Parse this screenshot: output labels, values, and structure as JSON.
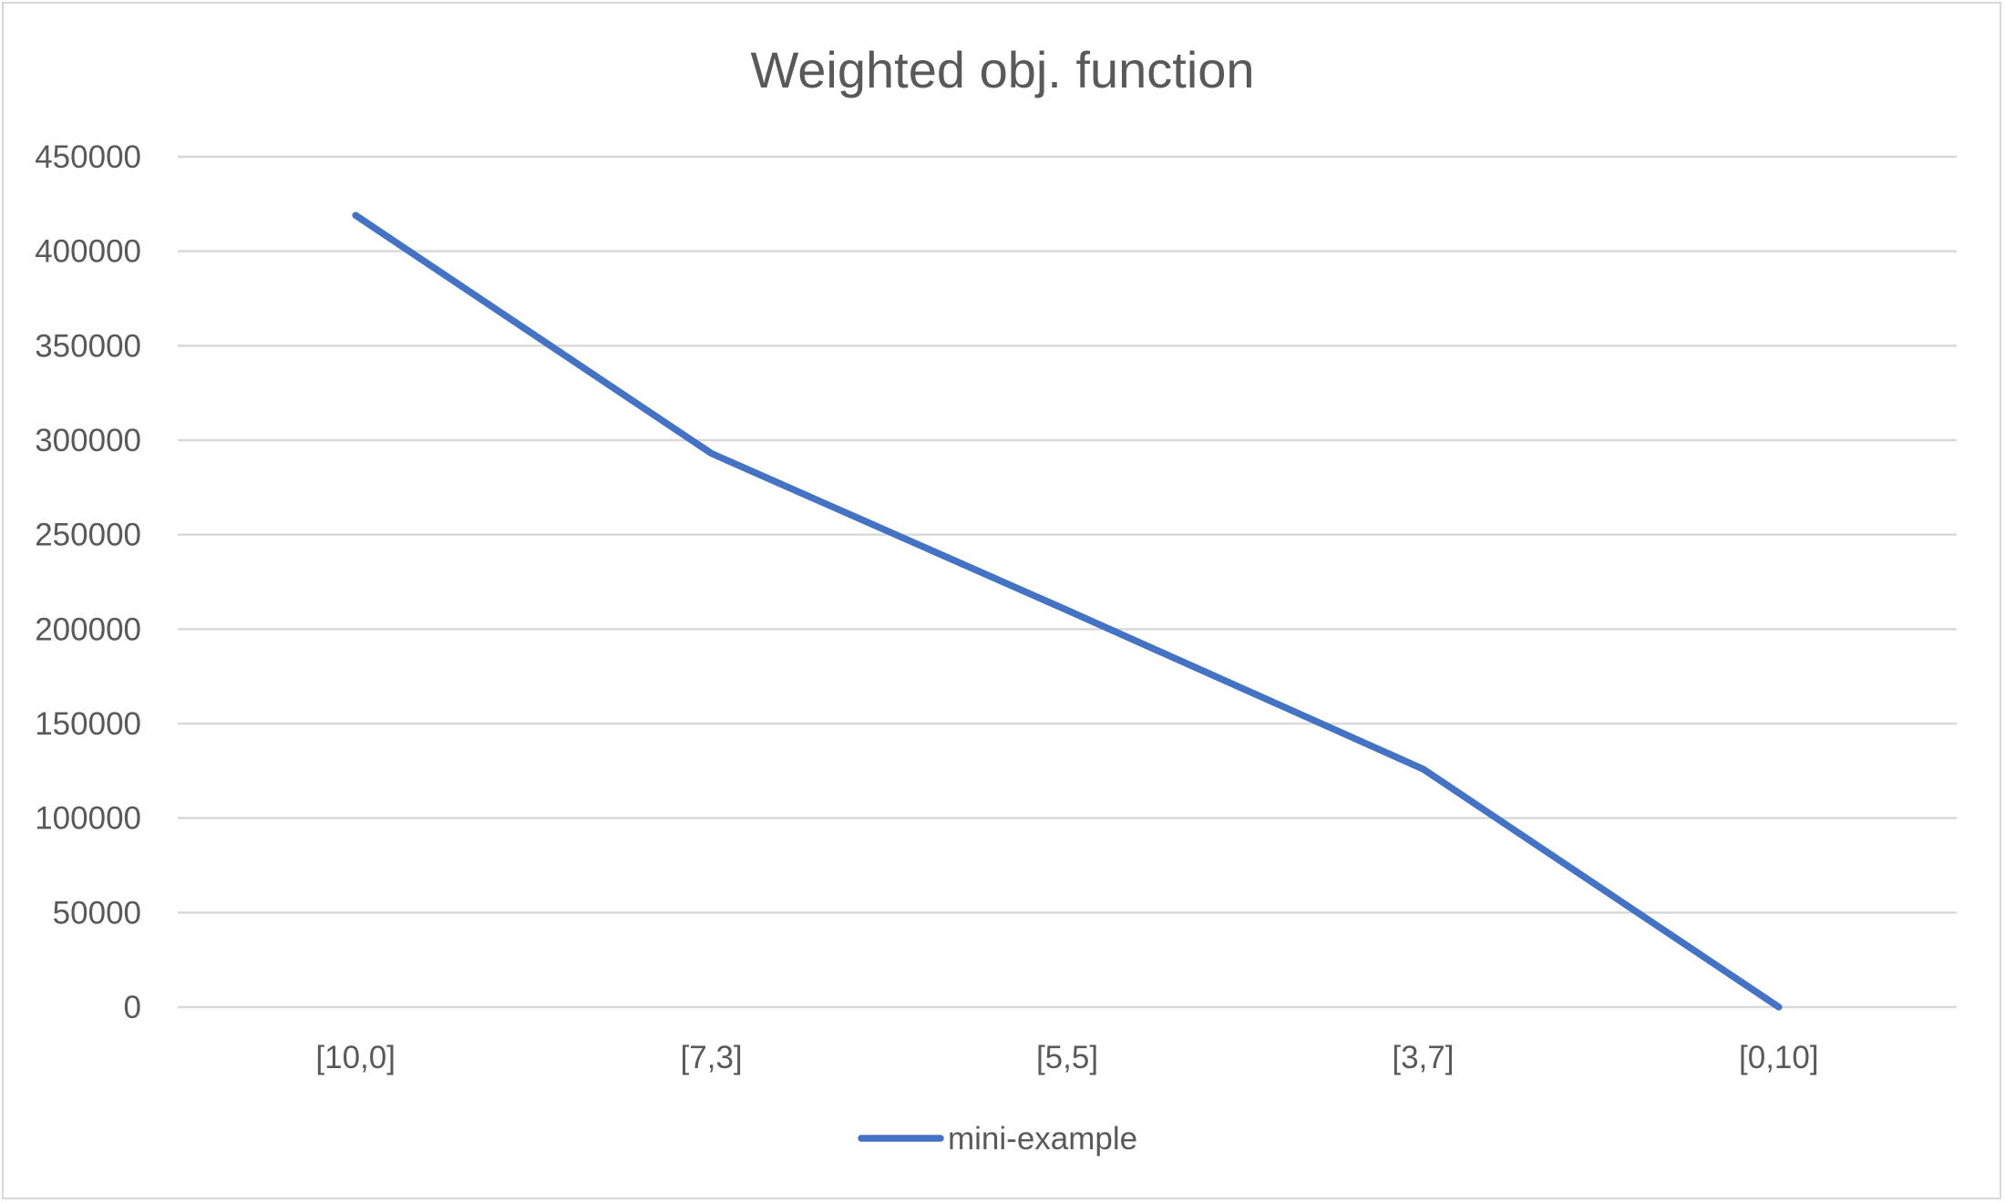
{
  "chart_data": {
    "type": "line",
    "title": "Weighted obj. function",
    "xlabel": "",
    "ylabel": "",
    "categories": [
      "[10,0]",
      "[7,3]",
      "[5,5]",
      "[3,7]",
      "[0,10]"
    ],
    "series": [
      {
        "name": "mini-example",
        "color": "#4472c4",
        "values": [
          419000,
          293000,
          210000,
          126000,
          0
        ]
      }
    ],
    "ylim": [
      0,
      450000
    ],
    "yticks": [
      0,
      50000,
      100000,
      150000,
      200000,
      250000,
      300000,
      350000,
      400000,
      450000
    ],
    "grid": "horizontal",
    "legend_position": "bottom"
  },
  "colors": {
    "gridline": "#d9d9d9",
    "text": "#595959",
    "border": "#d9d9d9"
  }
}
